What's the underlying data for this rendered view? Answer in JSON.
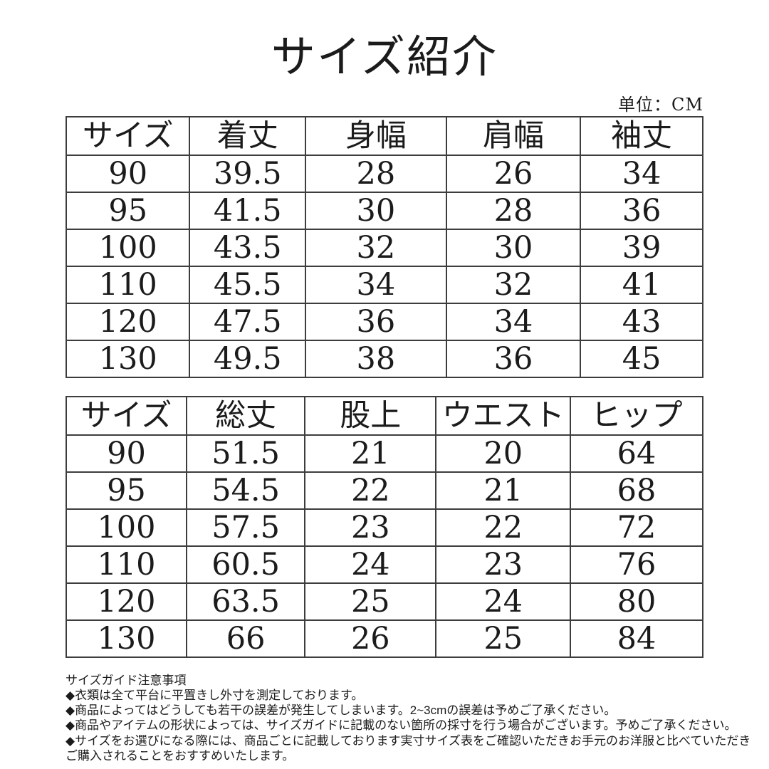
{
  "page": {
    "title": "サイズ紹介",
    "unit_label": "单位：CM"
  },
  "top_table": {
    "headers": [
      "サイズ",
      "着丈",
      "身幅",
      "肩幅",
      "袖丈"
    ],
    "rows": [
      [
        "90",
        "39.5",
        "28",
        "26",
        "34"
      ],
      [
        "95",
        "41.5",
        "30",
        "28",
        "36"
      ],
      [
        "100",
        "43.5",
        "32",
        "30",
        "39"
      ],
      [
        "110",
        "45.5",
        "34",
        "32",
        "41"
      ],
      [
        "120",
        "47.5",
        "36",
        "34",
        "43"
      ],
      [
        "130",
        "49.5",
        "38",
        "36",
        "45"
      ]
    ]
  },
  "bottom_table": {
    "headers": [
      "サイズ",
      "総丈",
      "股上",
      "ウエスト",
      "ヒップ"
    ],
    "rows": [
      [
        "90",
        "51.5",
        "21",
        "20",
        "64"
      ],
      [
        "95",
        "54.5",
        "22",
        "21",
        "68"
      ],
      [
        "100",
        "57.5",
        "23",
        "22",
        "72"
      ],
      [
        "110",
        "60.5",
        "24",
        "23",
        "76"
      ],
      [
        "120",
        "63.5",
        "25",
        "24",
        "80"
      ],
      [
        "130",
        "66",
        "26",
        "25",
        "84"
      ]
    ]
  },
  "notes": {
    "heading": "サイズガイド注意事項",
    "items": [
      "◆衣類は全て平台に平置きし外寸を測定しております。",
      "◆商品によってはどうしても若干の誤差が発生してしまいます。2~3cmの誤差は予めご了承ください。",
      "◆商品やアイテムの形状によっては、サイズガイドに記載のない箇所の採寸を行う場合がございます。予めご了承ください。",
      "◆サイズをお選びになる際には、商品ごとに記載しております実寸サイズ表をご確認いただきお手元のお洋服と比べていただきご購入されることをおすすめいたします。"
    ]
  },
  "colors": {
    "background": "#ffffff",
    "text": "#1b1b1b",
    "table_border": "#3d3d3d"
  }
}
